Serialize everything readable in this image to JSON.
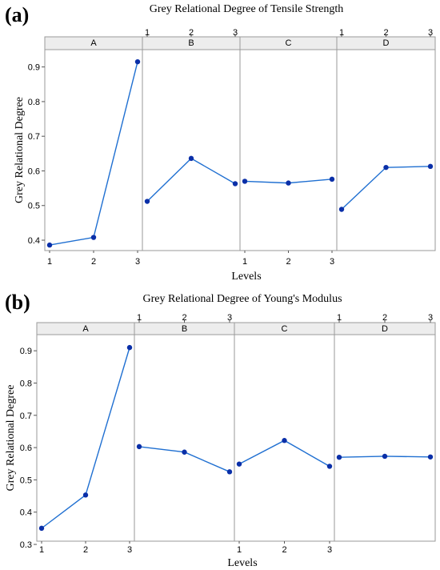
{
  "chart_data": [
    {
      "type": "line",
      "panel_label": "(a)",
      "title": "Grey Relational Degree of Tensile Strength",
      "xlabel": "Levels",
      "ylabel": "Grey Relational Degree",
      "ylim": [
        0.37,
        0.95
      ],
      "yticks": [
        "0.4",
        "0.5",
        "0.6",
        "0.7",
        "0.8",
        "0.9"
      ],
      "x_levels": [
        "1",
        "2",
        "3"
      ],
      "factors": [
        {
          "name": "A",
          "values": [
            0.386,
            0.408,
            0.915
          ]
        },
        {
          "name": "B",
          "values": [
            0.512,
            0.636,
            0.563
          ]
        },
        {
          "name": "C",
          "values": [
            0.57,
            0.565,
            0.576
          ]
        },
        {
          "name": "D",
          "values": [
            0.489,
            0.61,
            0.613
          ]
        }
      ],
      "line_color": "#1f6fd1",
      "marker_color": "#0a2fa8"
    },
    {
      "type": "line",
      "panel_label": "(b)",
      "title": "Grey Relational Degree of Young's Modulus",
      "xlabel": "Levels",
      "ylabel": "Grey Relational Degree",
      "ylim": [
        0.31,
        0.95
      ],
      "yticks": [
        "0.3",
        "0.4",
        "0.5",
        "0.6",
        "0.7",
        "0.8",
        "0.9"
      ],
      "x_levels": [
        "1",
        "2",
        "3"
      ],
      "factors": [
        {
          "name": "A",
          "values": [
            0.35,
            0.453,
            0.91
          ]
        },
        {
          "name": "B",
          "values": [
            0.603,
            0.586,
            0.525
          ]
        },
        {
          "name": "C",
          "values": [
            0.549,
            0.622,
            0.542
          ]
        },
        {
          "name": "D",
          "values": [
            0.57,
            0.573,
            0.571
          ]
        }
      ],
      "line_color": "#1f6fd1",
      "marker_color": "#0a2fa8"
    }
  ]
}
